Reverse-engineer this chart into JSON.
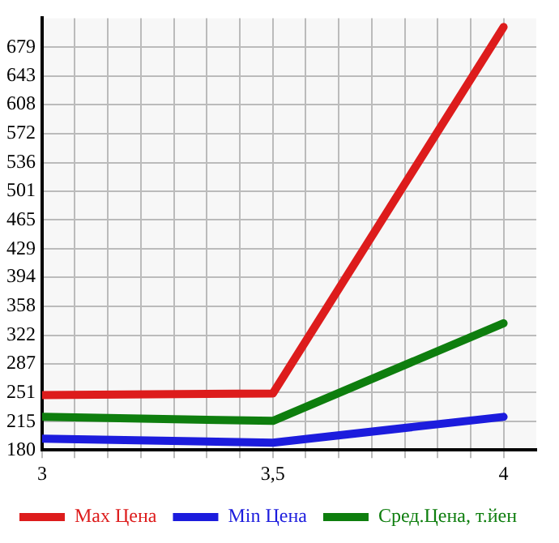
{
  "chart_data": {
    "type": "line",
    "x": [
      3,
      3.5,
      4
    ],
    "series": [
      {
        "name": "Max Цена",
        "color": "#dd1c1c",
        "values": [
          248,
          250,
          704
        ]
      },
      {
        "name": "Min Цена",
        "color": "#1c1cdd",
        "values": [
          194,
          189,
          221
        ]
      },
      {
        "name": "Сред.Цена, т.йен",
        "color": "#0e7e0e",
        "values": [
          221,
          216,
          337
        ]
      }
    ],
    "xlim": [
      3,
      4.071
    ],
    "xticks": [
      3,
      {
        "value": 3.071,
        "label": null
      },
      {
        "value": 3.143,
        "label": null
      },
      {
        "value": 3.214,
        "label": null
      },
      {
        "value": 3.286,
        "label": null
      },
      {
        "value": 3.357,
        "label": null
      },
      {
        "value": 3.429,
        "label": null
      },
      {
        "value": 3.5,
        "label": "3,5"
      },
      {
        "value": 3.571,
        "label": null
      },
      {
        "value": 3.643,
        "label": null
      },
      {
        "value": 3.714,
        "label": null
      },
      {
        "value": 3.786,
        "label": null
      },
      {
        "value": 3.857,
        "label": null
      },
      {
        "value": 3.929,
        "label": null
      },
      4
    ],
    "ylim": [
      180,
      715
    ],
    "yticks": [
      180,
      215,
      251,
      287,
      322,
      358,
      394,
      429,
      465,
      501,
      536,
      572,
      608,
      643,
      679
    ],
    "grid": true,
    "legend": "bottom",
    "marker": "none",
    "line_style": "solid"
  }
}
